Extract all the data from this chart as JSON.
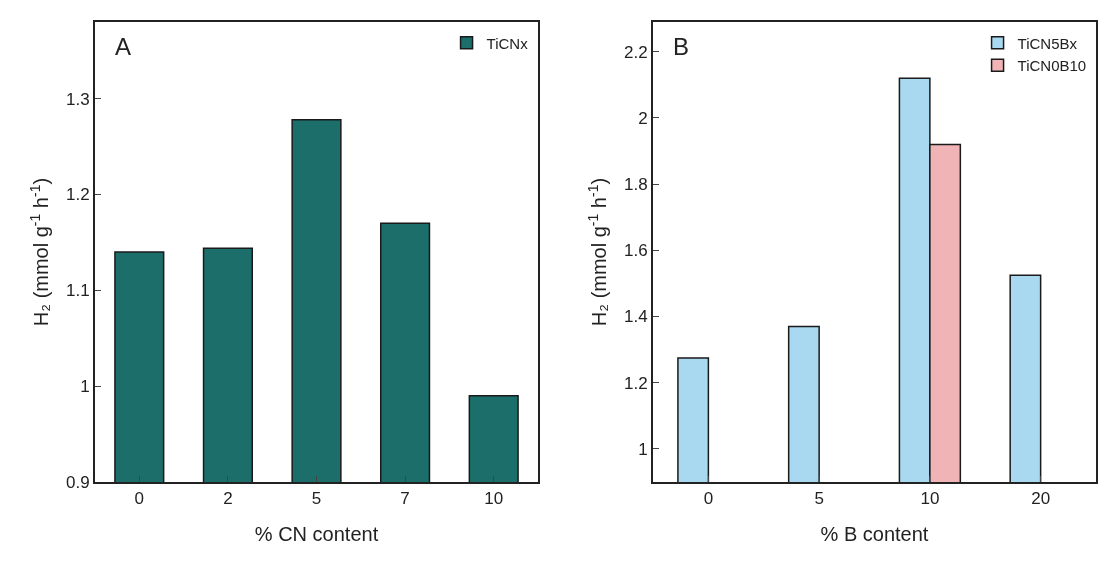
{
  "chart_data": [
    {
      "type": "bar",
      "xlabel": "% CN content",
      "ylabel": "H₂ (mmol g$^{-1}$ h$^{-1}$)",
      "annotations": [
        "A"
      ],
      "categories": [
        "0",
        "2",
        "5",
        "7",
        "10"
      ],
      "series": [
        {
          "name": "TiCNx",
          "color": "#1b6e69",
          "values": [
            1.14,
            1.144,
            1.278,
            1.17,
            0.99
          ]
        }
      ],
      "ylim": [
        0.9,
        1.38
      ],
      "yticks": [
        0.9,
        1.0,
        1.1,
        1.2,
        1.3
      ],
      "grid": false,
      "legend": "top right"
    },
    {
      "type": "bar",
      "xlabel": "% B content",
      "ylabel": "H₂ (mmol g$^{-1}$ h$^{-1}$)",
      "annotations": [
        "B"
      ],
      "categories": [
        "0",
        "5",
        "10",
        "20"
      ],
      "series": [
        {
          "name": "TiCN5Bx",
          "color": "#a9d9f0",
          "values": [
            1.275,
            1.37,
            2.12,
            1.525
          ]
        },
        {
          "name": "TiCN0B10",
          "color": "#f0b4b6",
          "values": [
            null,
            null,
            1.92,
            null
          ]
        }
      ],
      "ylim": [
        0.9,
        2.29
      ],
      "yticks": [
        1.0,
        1.2,
        1.4,
        1.6,
        1.8,
        2.0,
        2.2
      ],
      "grid": false,
      "legend": "top right"
    }
  ]
}
